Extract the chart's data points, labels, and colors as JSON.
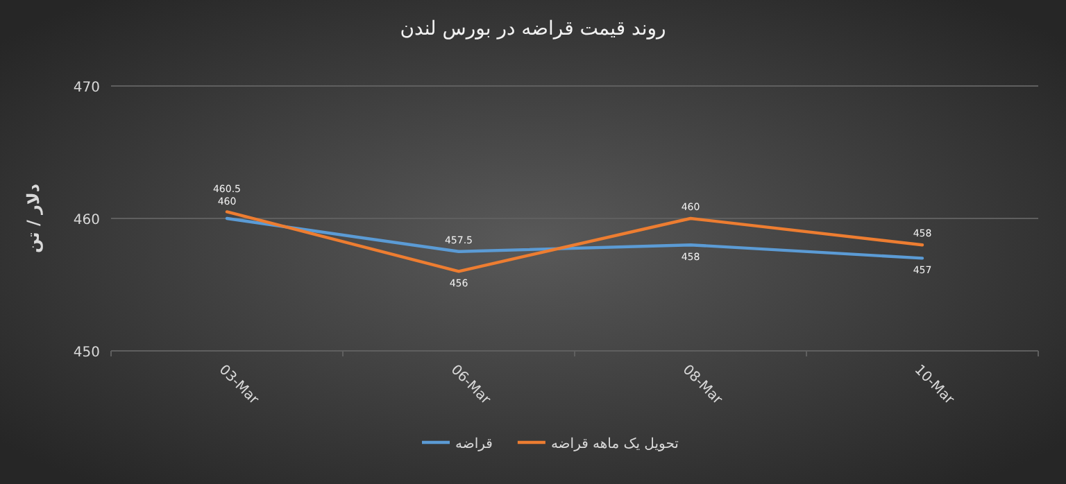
{
  "chart_data": {
    "type": "line",
    "title": "روند قیمت قراضه در بورس لندن",
    "ylabel": "دلار / تن",
    "categories": [
      "03-Mar",
      "06-Mar",
      "08-Mar",
      "10-Mar"
    ],
    "series": [
      {
        "name": "قراضه",
        "color": "#5b9bd5",
        "values": [
          460,
          457.5,
          458,
          457
        ]
      },
      {
        "name": "تحویل یک ماهه قراضه",
        "color": "#ed7d31",
        "values": [
          460.5,
          456,
          460,
          458
        ]
      }
    ],
    "ylim": [
      450,
      470
    ],
    "yticks": [
      450,
      460,
      470
    ],
    "grid": "y",
    "legend": "bottom",
    "data_labels": true,
    "marker": "none",
    "line_style": "solid"
  }
}
